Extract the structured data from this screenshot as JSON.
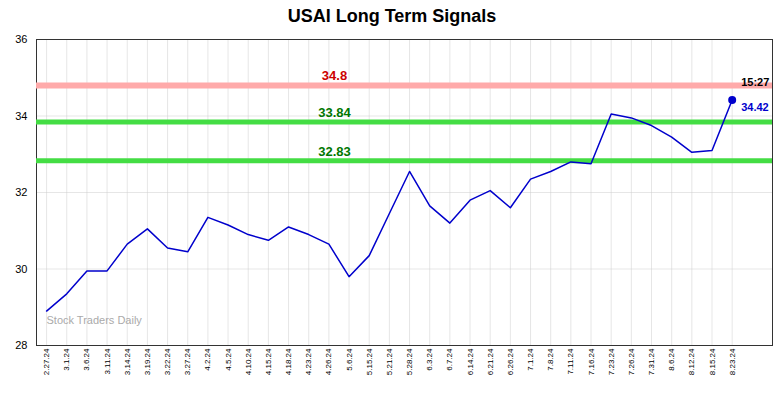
{
  "chart_data": {
    "type": "line",
    "title": "USAI Long Term Signals",
    "categories": [
      "2.27.24",
      "3.1.24",
      "3.6.24",
      "3.11.24",
      "3.14.24",
      "3.19.24",
      "3.22.24",
      "3.27.24",
      "4.2.24",
      "4.5.24",
      "4.10.24",
      "4.15.24",
      "4.18.24",
      "4.23.24",
      "4.26.24",
      "5.6.24",
      "5.15.24",
      "5.21.24",
      "5.28.24",
      "6.3.24",
      "6.7.24",
      "6.14.24",
      "6.21.24",
      "6.26.24",
      "7.1.24",
      "7.8.24",
      "7.11.24",
      "7.16.24",
      "7.23.24",
      "7.26.24",
      "7.31.24",
      "8.6.24",
      "8.12.24",
      "8.15.24",
      "8.23.24"
    ],
    "values": [
      28.9,
      29.35,
      29.95,
      29.95,
      30.65,
      31.05,
      30.55,
      30.45,
      31.35,
      31.15,
      30.9,
      30.75,
      31.1,
      30.9,
      30.65,
      29.8,
      30.35,
      31.45,
      32.55,
      31.65,
      31.2,
      31.8,
      32.05,
      31.6,
      32.35,
      32.55,
      32.8,
      32.75,
      34.05,
      33.95,
      33.75,
      33.45,
      33.05,
      33.1,
      34.42
    ],
    "color": "#0000cc",
    "ylim": [
      28,
      36
    ],
    "yticks": [
      28,
      30,
      32,
      34,
      36
    ],
    "grid": true,
    "hlines": [
      {
        "value": 34.8,
        "label": "34.8",
        "color": "#ffaaaa",
        "label_color": "#cc0000"
      },
      {
        "value": 33.84,
        "label": "33.84",
        "color": "#44dd44",
        "label_color": "#007700"
      },
      {
        "value": 32.83,
        "label": "32.83",
        "color": "#44dd44",
        "label_color": "#007700"
      }
    ],
    "annotations": [
      {
        "text": "15:27",
        "color": "#000000"
      },
      {
        "text": "34.42",
        "color": "#0000cc"
      }
    ],
    "watermark": "Stock Traders Daily"
  }
}
